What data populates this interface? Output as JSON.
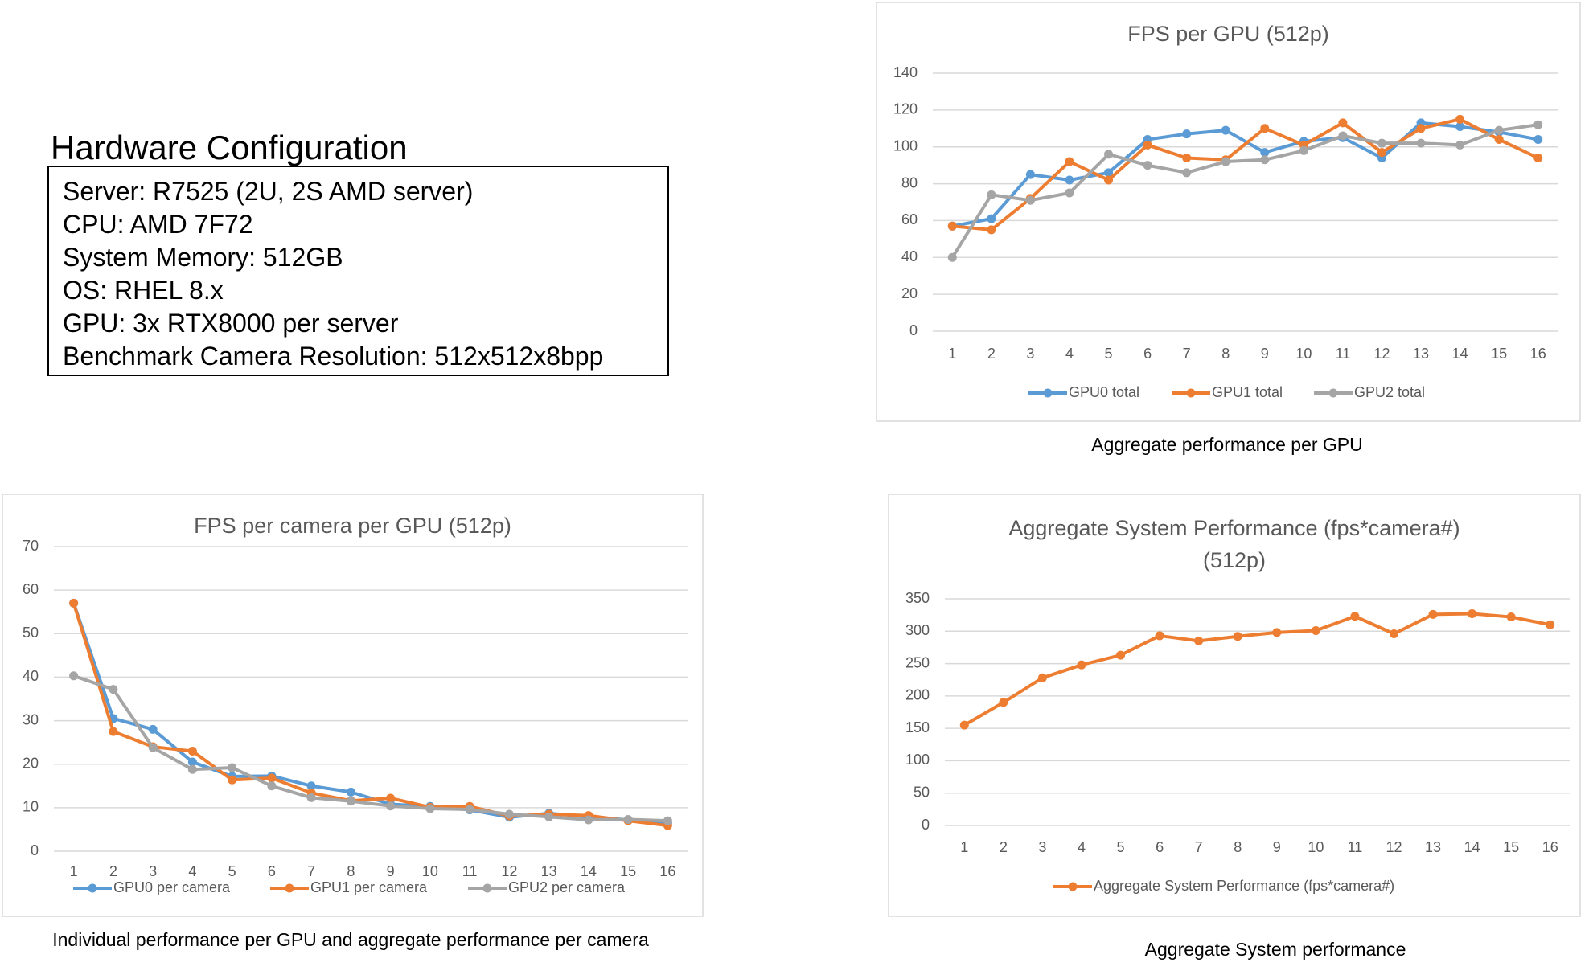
{
  "hardware": {
    "title": "Hardware Configuration",
    "lines": [
      "Server: R7525 (2U, 2S AMD server)",
      "CPU: AMD 7F72",
      "System Memory: 512GB",
      "OS: RHEL 8.x",
      "GPU: 3x RTX8000 per server",
      "Benchmark Camera Resolution: 512x512x8bpp"
    ]
  },
  "chart_data": [
    {
      "type": "line",
      "title": "FPS per GPU (512p)",
      "caption": "Aggregate performance per GPU",
      "categories": [
        1,
        2,
        3,
        4,
        5,
        6,
        7,
        8,
        9,
        10,
        11,
        12,
        13,
        14,
        15,
        16
      ],
      "series": [
        {
          "name": "GPU0 total",
          "color": "#5b9bd5",
          "values": [
            57,
            61,
            85,
            82,
            86,
            104,
            107,
            109,
            97,
            103,
            105,
            94,
            113,
            111,
            108,
            104
          ]
        },
        {
          "name": "GPU1 total",
          "color": "#ed7d31",
          "values": [
            57,
            55,
            72,
            92,
            82,
            101,
            94,
            93,
            110,
            101,
            113,
            97,
            110,
            115,
            104,
            94
          ]
        },
        {
          "name": "GPU2 total",
          "color": "#a5a5a5",
          "values": [
            40,
            74,
            71,
            75,
            96,
            90,
            86,
            92,
            93,
            98,
            106,
            102,
            102,
            101,
            109,
            112
          ]
        }
      ],
      "ylim": [
        0,
        140
      ],
      "yticks": [
        0,
        20,
        40,
        60,
        80,
        100,
        120,
        140
      ],
      "grid": true,
      "legend": "bottom"
    },
    {
      "type": "line",
      "title": "FPS per camera per GPU (512p)",
      "caption": "Individual  performance per GPU and aggregate performance per camera",
      "categories": [
        1,
        2,
        3,
        4,
        5,
        6,
        7,
        8,
        9,
        10,
        11,
        12,
        13,
        14,
        15,
        16
      ],
      "series": [
        {
          "name": "GPU0 per camera",
          "color": "#5b9bd5",
          "values": [
            57,
            30.5,
            28,
            20.5,
            17.2,
            17.3,
            15,
            13.6,
            10.8,
            10.3,
            9.5,
            7.8,
            8.7,
            7.9,
            7.2,
            6.5
          ]
        },
        {
          "name": "GPU1 per camera",
          "color": "#ed7d31",
          "values": [
            57,
            27.5,
            24,
            23,
            16.4,
            16.8,
            13.4,
            11.6,
            12.2,
            10.1,
            10.3,
            8.1,
            8.5,
            8.2,
            7,
            5.9
          ]
        },
        {
          "name": "GPU2 per camera",
          "color": "#a5a5a5",
          "values": [
            40.3,
            37.2,
            23.8,
            18.8,
            19.2,
            15,
            12.3,
            11.5,
            10.4,
            9.8,
            9.6,
            8.5,
            7.9,
            7.2,
            7.3,
            7
          ]
        }
      ],
      "ylim": [
        0,
        70
      ],
      "yticks": [
        0,
        10,
        20,
        30,
        40,
        50,
        60,
        70
      ],
      "grid": true,
      "legend": "bottom"
    },
    {
      "type": "line",
      "title": "Aggregate System Performance (fps*camera#) (512p)",
      "caption": "Aggregate System performance",
      "categories": [
        1,
        2,
        3,
        4,
        5,
        6,
        7,
        8,
        9,
        10,
        11,
        12,
        13,
        14,
        15,
        16
      ],
      "series": [
        {
          "name": "Aggregate System Performance (fps*camera#)",
          "color": "#ed7d31",
          "values": [
            155,
            190,
            228,
            248,
            263,
            293,
            285,
            292,
            298,
            301,
            323,
            296,
            326,
            327,
            322,
            310
          ]
        }
      ],
      "ylim": [
        0,
        350
      ],
      "yticks": [
        0,
        50,
        100,
        150,
        200,
        250,
        300,
        350
      ],
      "grid": true,
      "legend": "bottom"
    }
  ]
}
